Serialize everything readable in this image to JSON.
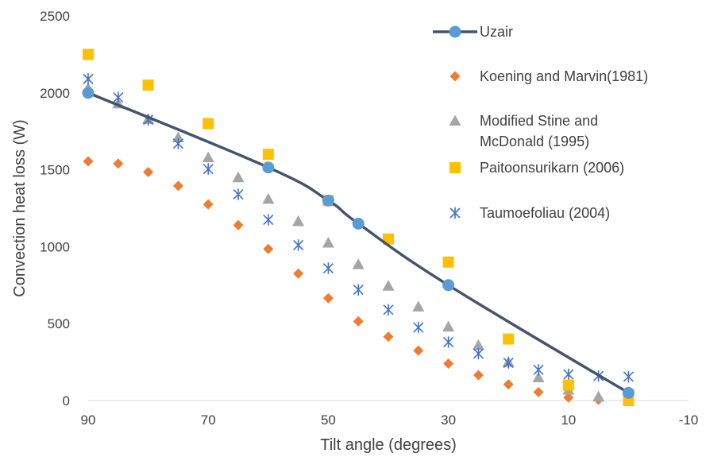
{
  "chart_data": {
    "type": "scatter",
    "title": "",
    "xlabel": "Tilt angle (degrees)",
    "ylabel": "Convection heat loss (W)",
    "xlim": [
      90,
      -10
    ],
    "ylim": [
      0,
      2500
    ],
    "x_reversed": true,
    "x_ticks": [
      90,
      70,
      50,
      30,
      10,
      -10
    ],
    "y_ticks": [
      0,
      500,
      1000,
      1500,
      2000,
      2500
    ],
    "grid": false,
    "legend_position": "top-right",
    "series": [
      {
        "name": "Uzair",
        "style": "line-circle",
        "color": "#44546A",
        "marker_color": "#5B9BD5",
        "x": [
          90,
          60,
          50,
          45,
          30,
          0
        ],
        "y": [
          2000,
          1515,
          1300,
          1150,
          750,
          50
        ]
      },
      {
        "name": "Koening and Marvin(1981)",
        "style": "diamond",
        "color": "#ED7D31",
        "x": [
          90,
          85,
          80,
          75,
          70,
          65,
          60,
          55,
          50,
          45,
          40,
          35,
          30,
          25,
          20,
          15,
          10,
          5
        ],
        "y": [
          1555,
          1540,
          1485,
          1395,
          1275,
          1140,
          985,
          825,
          665,
          515,
          415,
          325,
          240,
          165,
          105,
          55,
          20,
          5
        ]
      },
      {
        "name": "Modified Stine and McDonald (1995)",
        "style": "triangle",
        "color": "#A5A5A5",
        "x": [
          90,
          85,
          80,
          75,
          70,
          65,
          60,
          55,
          50,
          45,
          40,
          35,
          30,
          25,
          20,
          15,
          10,
          5
        ],
        "y": [
          2030,
          1930,
          1830,
          1710,
          1580,
          1450,
          1310,
          1165,
          1025,
          885,
          745,
          610,
          480,
          360,
          250,
          150,
          70,
          25
        ]
      },
      {
        "name": "Paitoonsurikarn (2006)",
        "style": "square",
        "color": "#FFC000",
        "x": [
          90,
          80,
          70,
          60,
          50,
          40,
          30,
          20,
          10,
          0
        ],
        "y": [
          2250,
          2050,
          1800,
          1600,
          1300,
          1050,
          900,
          400,
          100,
          0
        ]
      },
      {
        "name": "Taumoefoliau (2004)",
        "style": "asterisk",
        "color": "#4472C4",
        "x": [
          90,
          85,
          80,
          75,
          70,
          65,
          60,
          55,
          50,
          45,
          40,
          35,
          30,
          25,
          20,
          15,
          10,
          5,
          0
        ],
        "y": [
          2090,
          1970,
          1825,
          1670,
          1505,
          1340,
          1175,
          1010,
          860,
          720,
          590,
          475,
          380,
          305,
          245,
          200,
          170,
          160,
          155
        ]
      }
    ]
  }
}
